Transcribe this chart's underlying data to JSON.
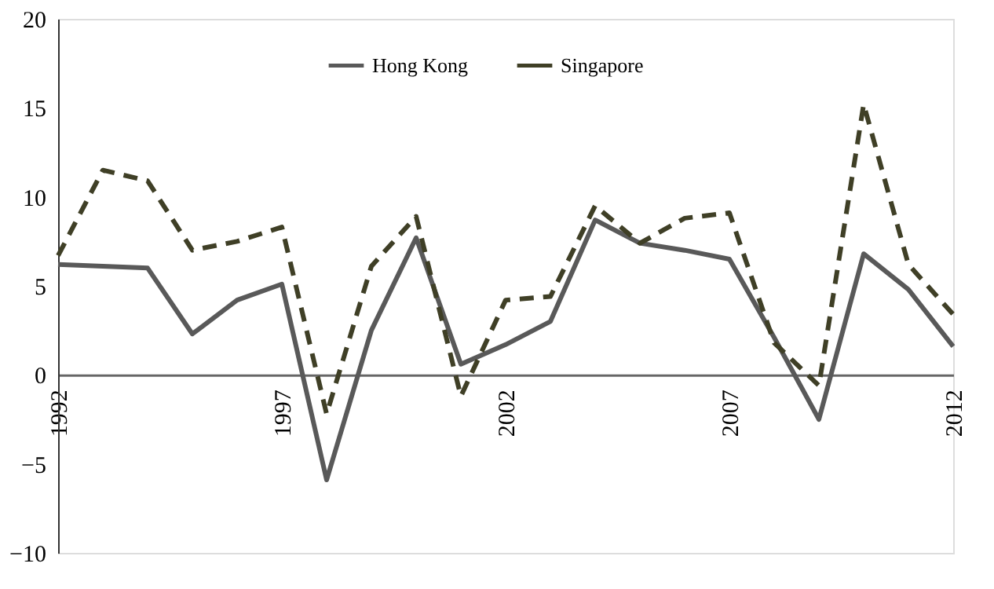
{
  "chart_data": {
    "type": "line",
    "x": [
      1992,
      1993,
      1994,
      1995,
      1996,
      1997,
      1998,
      1999,
      2000,
      2001,
      2002,
      2003,
      2004,
      2005,
      2006,
      2007,
      2008,
      2009,
      2010,
      2011,
      2012
    ],
    "series": [
      {
        "name": "Hong Kong",
        "color": "#595959",
        "line_style": "solid",
        "values": [
          6.2,
          6.1,
          6.0,
          2.3,
          4.2,
          5.1,
          -5.9,
          2.5,
          7.7,
          0.6,
          1.7,
          3.0,
          8.7,
          7.4,
          7.0,
          6.5,
          2.1,
          -2.5,
          6.8,
          4.8,
          1.6
        ]
      },
      {
        "name": "Singapore",
        "color": "#3f3f26",
        "line_style": "dashed",
        "values": [
          6.7,
          11.5,
          10.9,
          7.0,
          7.5,
          8.3,
          -2.2,
          6.1,
          8.9,
          -1.2,
          4.2,
          4.4,
          9.5,
          7.4,
          8.8,
          9.1,
          1.8,
          -0.6,
          15.2,
          6.2,
          3.4
        ]
      }
    ],
    "xlim": [
      1992,
      2012
    ],
    "xticks": [
      1992,
      1997,
      2002,
      2007,
      2012
    ],
    "ylim": [
      -10,
      20
    ],
    "yticks": [
      -10,
      -5,
      0,
      5,
      10,
      15,
      20
    ],
    "grid": false,
    "legend": "top",
    "marker": "none"
  }
}
